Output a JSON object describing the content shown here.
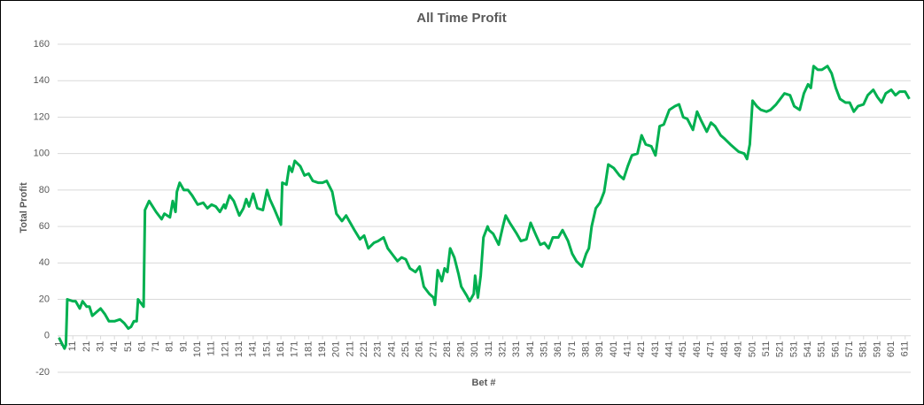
{
  "chart_data": {
    "type": "line",
    "title": "All Time Profit",
    "x_label": "Bet #",
    "y_label": "Total Profit",
    "x": [
      1,
      3,
      5,
      6,
      7,
      11,
      13,
      16,
      18,
      21,
      23,
      25,
      28,
      31,
      34,
      37,
      41,
      45,
      48,
      51,
      53,
      55,
      57,
      58,
      61,
      62,
      63,
      66,
      71,
      75,
      77,
      81,
      83,
      85,
      86,
      88,
      91,
      94,
      97,
      101,
      105,
      108,
      111,
      114,
      117,
      120,
      121,
      124,
      127,
      131,
      134,
      136,
      138,
      141,
      144,
      148,
      151,
      153,
      156,
      161,
      162,
      165,
      167,
      169,
      171,
      175,
      178,
      181,
      184,
      188,
      191,
      194,
      198,
      201,
      205,
      208,
      211,
      214,
      218,
      221,
      224,
      228,
      231,
      235,
      238,
      241,
      245,
      248,
      251,
      254,
      258,
      261,
      264,
      268,
      271,
      272,
      274,
      277,
      279,
      281,
      283,
      286,
      289,
      291,
      295,
      297,
      300,
      301,
      303,
      305,
      307,
      310,
      311,
      314,
      318,
      321,
      323,
      326,
      331,
      334,
      338,
      341,
      345,
      348,
      351,
      354,
      357,
      361,
      364,
      368,
      371,
      374,
      378,
      381,
      383,
      385,
      388,
      391,
      394,
      397,
      401,
      405,
      408,
      411,
      414,
      418,
      421,
      424,
      428,
      431,
      434,
      437,
      441,
      445,
      448,
      451,
      454,
      458,
      461,
      464,
      468,
      471,
      474,
      478,
      481,
      485,
      488,
      491,
      495,
      497,
      499,
      501,
      504,
      507,
      511,
      514,
      518,
      521,
      524,
      528,
      531,
      535,
      538,
      541,
      543,
      545,
      548,
      551,
      555,
      558,
      561,
      564,
      568,
      571,
      574,
      577,
      581,
      584,
      588,
      591,
      594,
      597,
      601,
      604,
      607,
      611,
      614
    ],
    "series": [
      {
        "name": "Total Profit",
        "color": "#00b050",
        "values": [
          -1,
          -4,
          -7,
          -5,
          20,
          19,
          19,
          15,
          19,
          16,
          16,
          11,
          13,
          15,
          12,
          8,
          8,
          9,
          7,
          4,
          5,
          8,
          8,
          20,
          17,
          16,
          69,
          74,
          68,
          64,
          67,
          65,
          74,
          68,
          79,
          84,
          80,
          80,
          77,
          72,
          73,
          70,
          72,
          71,
          68,
          72,
          70,
          77,
          74,
          66,
          70,
          75,
          71,
          78,
          70,
          69,
          80,
          75,
          70,
          61,
          84,
          83,
          93,
          90,
          96,
          93,
          88,
          89,
          85,
          84,
          84,
          85,
          79,
          67,
          63,
          66,
          62,
          58,
          53,
          55,
          48,
          51,
          52,
          54,
          48,
          45,
          41,
          43,
          42,
          37,
          35,
          38,
          27,
          23,
          21,
          17,
          36,
          30,
          37,
          35,
          48,
          43,
          34,
          27,
          22,
          19,
          23,
          33,
          21,
          33,
          54,
          60,
          58,
          56,
          50,
          60,
          66,
          62,
          56,
          52,
          53,
          62,
          55,
          50,
          51,
          48,
          54,
          54,
          58,
          52,
          45,
          41,
          38,
          45,
          48,
          60,
          70,
          73,
          79,
          94,
          92,
          88,
          86,
          93,
          99,
          100,
          110,
          105,
          104,
          99,
          115,
          116,
          124,
          126,
          127,
          120,
          119,
          113,
          123,
          118,
          112,
          117,
          115,
          110,
          108,
          105,
          103,
          101,
          100,
          97,
          105,
          129,
          126,
          124,
          123,
          124,
          127,
          130,
          133,
          132,
          126,
          124,
          133,
          138,
          136,
          148,
          146,
          146,
          148,
          144,
          136,
          130,
          128,
          128,
          123,
          126,
          127,
          132,
          135,
          131,
          128,
          133,
          135,
          132,
          134,
          134,
          130
        ]
      }
    ],
    "xlim": [
      0,
      615
    ],
    "xticks": [
      1,
      11,
      21,
      31,
      41,
      51,
      61,
      71,
      81,
      91,
      101,
      111,
      121,
      131,
      141,
      151,
      161,
      171,
      181,
      191,
      201,
      211,
      221,
      231,
      241,
      251,
      261,
      271,
      281,
      291,
      301,
      311,
      321,
      331,
      341,
      351,
      361,
      371,
      381,
      391,
      401,
      411,
      421,
      431,
      441,
      451,
      461,
      471,
      481,
      491,
      501,
      511,
      521,
      531,
      541,
      551,
      561,
      571,
      581,
      591,
      601,
      611
    ],
    "ylim": [
      -20,
      160
    ],
    "yticks": [
      -20,
      0,
      20,
      40,
      60,
      80,
      100,
      120,
      140,
      160
    ],
    "grid": true
  }
}
